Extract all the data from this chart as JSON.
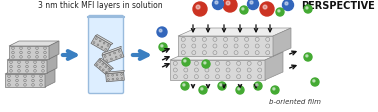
{
  "title_text": "3 nm thick MFI layers in solution",
  "perspective_text": "PERSPECTIVE",
  "bottom_text": "b-oriented film",
  "bg_color": "#ffffff",
  "arrow_color_blue": "#3a7fc1",
  "dark_arrow_color": "#1a1a1a",
  "sphere_colors": {
    "red": "#cc3322",
    "blue": "#3366bb",
    "green": "#44aa33"
  },
  "zeolite_face": "#d0d0d0",
  "zeolite_top": "#e8e8e8",
  "zeolite_side": "#b0b0b0",
  "zeolite_edge": "#888888",
  "beaker_fill": "#ddeeff",
  "beaker_edge": "#99bbdd",
  "nanosheet_face": "#c0c0c0",
  "nanosheet_edge": "#777777"
}
